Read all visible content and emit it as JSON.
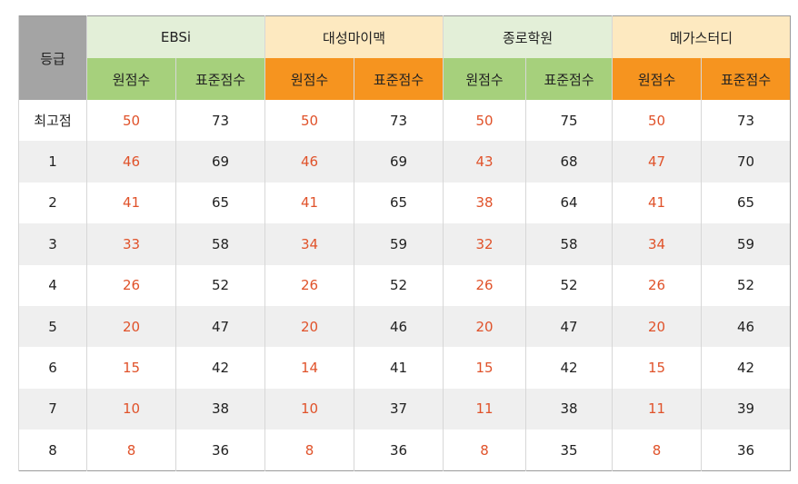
{
  "table": {
    "grade_header": "등급",
    "groups": [
      {
        "name": "EBSi",
        "raw": "원점수",
        "std": "표준점수"
      },
      {
        "name": "대성마이맥",
        "raw": "원점수",
        "std": "표준점수"
      },
      {
        "name": "종로학원",
        "raw": "원점수",
        "std": "표준점수"
      },
      {
        "name": "메가스터디",
        "raw": "원점수",
        "std": "표준점수"
      }
    ],
    "rows": [
      {
        "grade": "최고점",
        "vals": [
          "50",
          "73",
          "50",
          "73",
          "50",
          "75",
          "50",
          "73"
        ]
      },
      {
        "grade": "1",
        "vals": [
          "46",
          "69",
          "46",
          "69",
          "43",
          "68",
          "47",
          "70"
        ]
      },
      {
        "grade": "2",
        "vals": [
          "41",
          "65",
          "41",
          "65",
          "38",
          "64",
          "41",
          "65"
        ]
      },
      {
        "grade": "3",
        "vals": [
          "33",
          "58",
          "34",
          "59",
          "32",
          "58",
          "34",
          "59"
        ]
      },
      {
        "grade": "4",
        "vals": [
          "26",
          "52",
          "26",
          "52",
          "26",
          "52",
          "26",
          "52"
        ]
      },
      {
        "grade": "5",
        "vals": [
          "20",
          "47",
          "20",
          "46",
          "20",
          "47",
          "20",
          "46"
        ]
      },
      {
        "grade": "6",
        "vals": [
          "15",
          "42",
          "14",
          "41",
          "15",
          "42",
          "15",
          "42"
        ]
      },
      {
        "grade": "7",
        "vals": [
          "10",
          "38",
          "10",
          "37",
          "11",
          "38",
          "11",
          "39"
        ]
      },
      {
        "grade": "8",
        "vals": [
          "8",
          "36",
          "8",
          "36",
          "8",
          "35",
          "8",
          "36"
        ]
      }
    ]
  }
}
